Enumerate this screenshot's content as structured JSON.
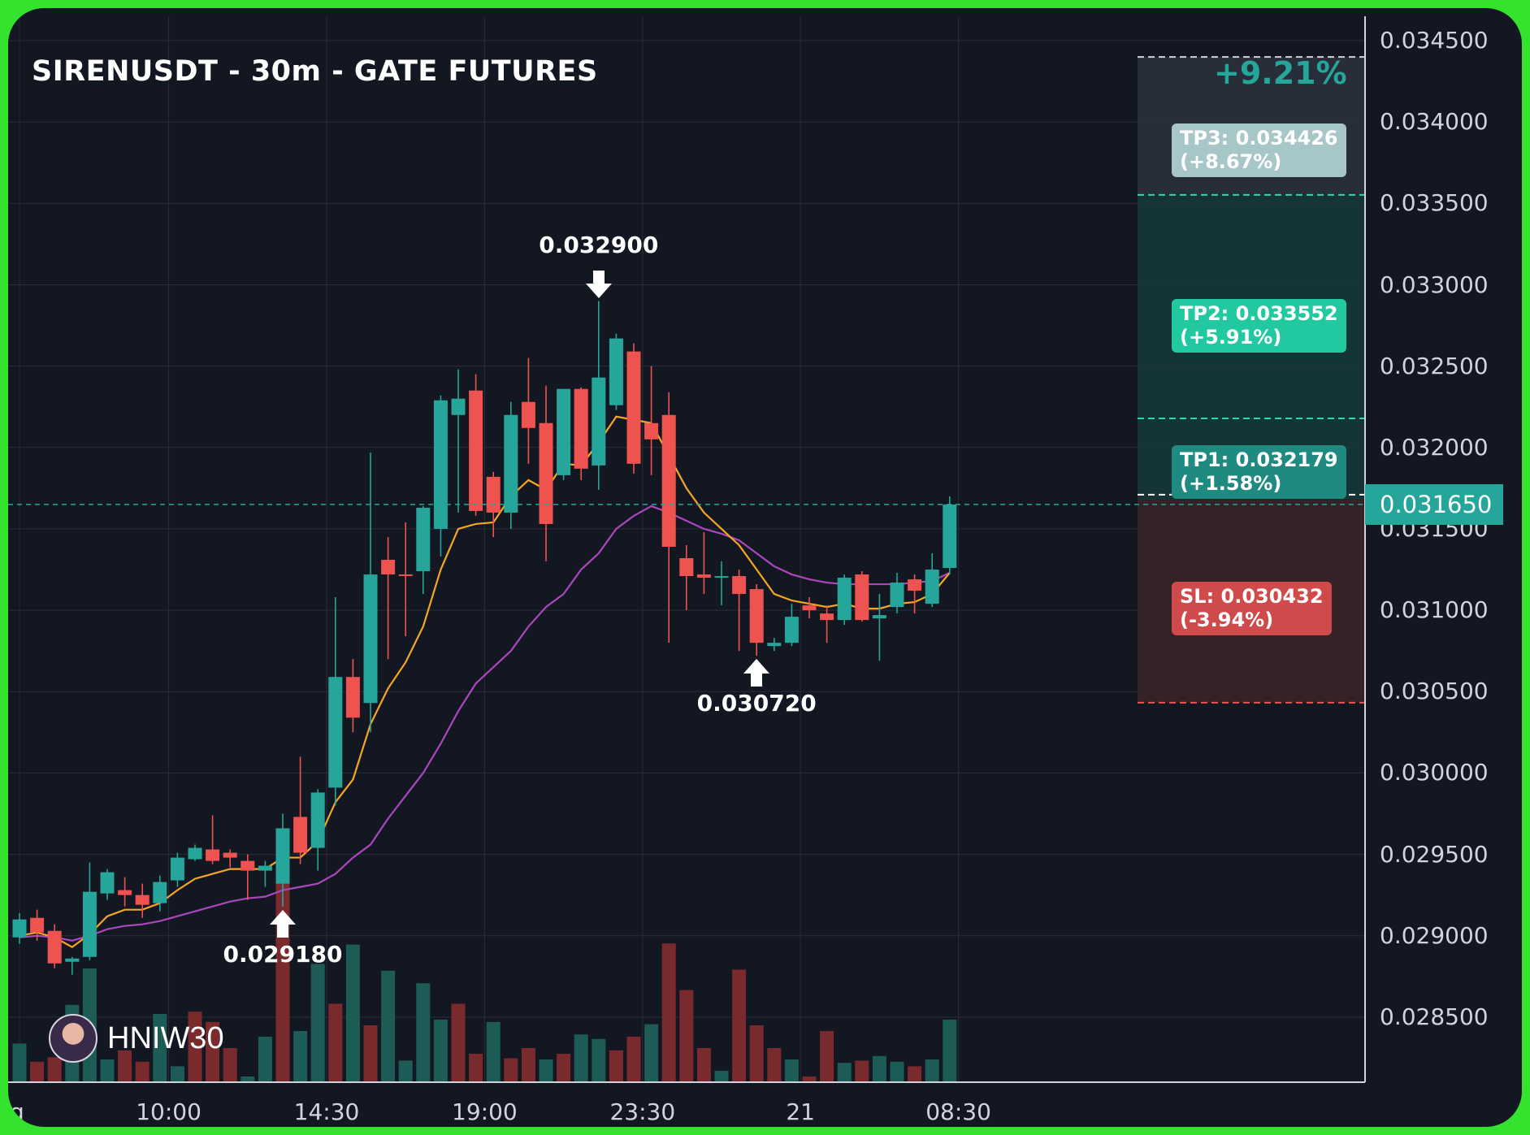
{
  "header": {
    "title": "SIRENUSDT - 30m - GATE FUTURES",
    "change_label": "+9.21%"
  },
  "levels": {
    "tp3": {
      "line1": "TP3: 0.034426",
      "line2": "(+8.67%)",
      "price": 0.034426
    },
    "tp2": {
      "line1": "TP2: 0.033552",
      "line2": "(+5.91%)",
      "price": 0.033552
    },
    "tp1": {
      "line1": "TP1: 0.032179",
      "line2": "(+1.58%)",
      "price": 0.032179
    },
    "entry": {
      "price": 0.03168
    },
    "sl": {
      "line1": "SL: 0.030432",
      "line2": "(-3.94%)",
      "price": 0.030432
    },
    "top_target": {
      "price": 0.0344
    }
  },
  "current_price": {
    "label": "0.031650",
    "value": 0.03165
  },
  "annotations": [
    {
      "label": "0.032900",
      "direction": "down",
      "candle": 33
    },
    {
      "label": "0.030720",
      "direction": "up",
      "candle": 42
    },
    {
      "label": "0.029180",
      "direction": "up",
      "candle": 15
    }
  ],
  "watermark": {
    "name": "HNIW30"
  },
  "colors": {
    "up": "#26a69a",
    "down": "#ef5350",
    "ema_fast": "#f5a623",
    "ema_slow": "#ab47bc",
    "background": "#131722",
    "frame": "#33e32e"
  },
  "chart_data": {
    "type": "candlestick",
    "symbol": "SIRENUSDT",
    "timeframe": "30m",
    "exchange": "GATE FUTURES",
    "ylim": [
      0.0281,
      0.03465
    ],
    "y_ticks": [
      "0.034500",
      "0.034000",
      "0.033500",
      "0.033000",
      "0.032500",
      "0.032000",
      "0.031500",
      "0.031000",
      "0.030500",
      "0.030000",
      "0.029500",
      "0.029000",
      "0.028500"
    ],
    "x_ticks": [
      {
        "label": "g",
        "index": 0
      },
      {
        "label": "10:00",
        "index": 8.5
      },
      {
        "label": "14:30",
        "index": 17.5
      },
      {
        "label": "19:00",
        "index": 26.5
      },
      {
        "label": "23:30",
        "index": 35.5
      },
      {
        "label": "21",
        "index": 44.5
      },
      {
        "label": "08:30",
        "index": 53.5
      }
    ],
    "grid": true,
    "candles": [
      {
        "o": 0.02899,
        "h": 0.02914,
        "l": 0.02895,
        "c": 0.0291
      },
      {
        "o": 0.02911,
        "h": 0.02916,
        "l": 0.02897,
        "c": 0.02902
      },
      {
        "o": 0.02903,
        "h": 0.02907,
        "l": 0.0288,
        "c": 0.02883
      },
      {
        "o": 0.02884,
        "h": 0.02887,
        "l": 0.02876,
        "c": 0.02886
      },
      {
        "o": 0.02887,
        "h": 0.02945,
        "l": 0.02885,
        "c": 0.02927
      },
      {
        "o": 0.02926,
        "h": 0.02941,
        "l": 0.02922,
        "c": 0.02939
      },
      {
        "o": 0.02928,
        "h": 0.02936,
        "l": 0.02918,
        "c": 0.02925
      },
      {
        "o": 0.02925,
        "h": 0.02932,
        "l": 0.02911,
        "c": 0.02919
      },
      {
        "o": 0.0292,
        "h": 0.02937,
        "l": 0.02915,
        "c": 0.02933
      },
      {
        "o": 0.02934,
        "h": 0.02951,
        "l": 0.0293,
        "c": 0.02948
      },
      {
        "o": 0.02947,
        "h": 0.02956,
        "l": 0.02946,
        "c": 0.02954
      },
      {
        "o": 0.02953,
        "h": 0.02974,
        "l": 0.02944,
        "c": 0.02946
      },
      {
        "o": 0.02951,
        "h": 0.02953,
        "l": 0.02942,
        "c": 0.02948
      },
      {
        "o": 0.02946,
        "h": 0.0295,
        "l": 0.02922,
        "c": 0.0294
      },
      {
        "o": 0.0294,
        "h": 0.02946,
        "l": 0.0293,
        "c": 0.02943
      },
      {
        "o": 0.02932,
        "h": 0.02975,
        "l": 0.02918,
        "c": 0.02966
      },
      {
        "o": 0.02973,
        "h": 0.0301,
        "l": 0.02944,
        "c": 0.02951
      },
      {
        "o": 0.02954,
        "h": 0.0299,
        "l": 0.0294,
        "c": 0.02988
      },
      {
        "o": 0.02991,
        "h": 0.03108,
        "l": 0.0298,
        "c": 0.03059
      },
      {
        "o": 0.03059,
        "h": 0.0307,
        "l": 0.03025,
        "c": 0.03034
      },
      {
        "o": 0.03043,
        "h": 0.03197,
        "l": 0.03025,
        "c": 0.03122
      },
      {
        "o": 0.03131,
        "h": 0.03145,
        "l": 0.0307,
        "c": 0.03122
      },
      {
        "o": 0.03122,
        "h": 0.03154,
        "l": 0.03084,
        "c": 0.03121
      },
      {
        "o": 0.03124,
        "h": 0.03164,
        "l": 0.0311,
        "c": 0.03163
      },
      {
        "o": 0.0315,
        "h": 0.03232,
        "l": 0.03133,
        "c": 0.03229
      },
      {
        "o": 0.0322,
        "h": 0.03248,
        "l": 0.0316,
        "c": 0.0323
      },
      {
        "o": 0.03235,
        "h": 0.03245,
        "l": 0.03158,
        "c": 0.03161
      },
      {
        "o": 0.03182,
        "h": 0.03185,
        "l": 0.03145,
        "c": 0.0316
      },
      {
        "o": 0.0316,
        "h": 0.03228,
        "l": 0.0315,
        "c": 0.0322
      },
      {
        "o": 0.03228,
        "h": 0.03255,
        "l": 0.0319,
        "c": 0.03212
      },
      {
        "o": 0.03215,
        "h": 0.03238,
        "l": 0.0313,
        "c": 0.03153
      },
      {
        "o": 0.03183,
        "h": 0.03235,
        "l": 0.0318,
        "c": 0.03236
      },
      {
        "o": 0.03236,
        "h": 0.03237,
        "l": 0.0318,
        "c": 0.03187
      },
      {
        "o": 0.03189,
        "h": 0.0329,
        "l": 0.03174,
        "c": 0.03243
      },
      {
        "o": 0.03226,
        "h": 0.0327,
        "l": 0.03223,
        "c": 0.03267
      },
      {
        "o": 0.03259,
        "h": 0.03264,
        "l": 0.03184,
        "c": 0.0319
      },
      {
        "o": 0.03215,
        "h": 0.0325,
        "l": 0.03183,
        "c": 0.03205
      },
      {
        "o": 0.0322,
        "h": 0.03234,
        "l": 0.0308,
        "c": 0.03139
      },
      {
        "o": 0.03132,
        "h": 0.0314,
        "l": 0.031,
        "c": 0.03121
      },
      {
        "o": 0.03122,
        "h": 0.03148,
        "l": 0.0311,
        "c": 0.0312
      },
      {
        "o": 0.0312,
        "h": 0.0313,
        "l": 0.03103,
        "c": 0.03121
      },
      {
        "o": 0.03121,
        "h": 0.03125,
        "l": 0.03075,
        "c": 0.0311
      },
      {
        "o": 0.03113,
        "h": 0.03116,
        "l": 0.03072,
        "c": 0.0308
      },
      {
        "o": 0.03078,
        "h": 0.03083,
        "l": 0.03075,
        "c": 0.0308
      },
      {
        "o": 0.0308,
        "h": 0.03104,
        "l": 0.03078,
        "c": 0.03096
      },
      {
        "o": 0.03103,
        "h": 0.03108,
        "l": 0.03095,
        "c": 0.031
      },
      {
        "o": 0.03098,
        "h": 0.03103,
        "l": 0.0308,
        "c": 0.03094
      },
      {
        "o": 0.03094,
        "h": 0.03122,
        "l": 0.03091,
        "c": 0.0312
      },
      {
        "o": 0.03122,
        "h": 0.03124,
        "l": 0.03093,
        "c": 0.03094
      },
      {
        "o": 0.03095,
        "h": 0.0311,
        "l": 0.03069,
        "c": 0.03097
      },
      {
        "o": 0.03102,
        "h": 0.03123,
        "l": 0.03098,
        "c": 0.03117
      },
      {
        "o": 0.03119,
        "h": 0.03122,
        "l": 0.03098,
        "c": 0.03112
      },
      {
        "o": 0.03104,
        "h": 0.03135,
        "l": 0.03102,
        "c": 0.03125
      },
      {
        "o": 0.03126,
        "h": 0.0317,
        "l": 0.03122,
        "c": 0.03165
      }
    ],
    "volume": [
      {
        "v": 0.34,
        "up": true
      },
      {
        "v": 0.18,
        "up": false
      },
      {
        "v": 0.22,
        "up": false
      },
      {
        "v": 0.68,
        "up": true
      },
      {
        "v": 1.0,
        "up": true
      },
      {
        "v": 0.2,
        "up": true
      },
      {
        "v": 0.28,
        "up": false
      },
      {
        "v": 0.18,
        "up": false
      },
      {
        "v": 0.6,
        "up": true
      },
      {
        "v": 0.14,
        "up": true
      },
      {
        "v": 0.62,
        "up": false
      },
      {
        "v": 0.53,
        "up": false
      },
      {
        "v": 0.3,
        "up": false
      },
      {
        "v": 0.05,
        "up": true
      },
      {
        "v": 0.4,
        "up": true
      },
      {
        "v": 1.81,
        "up": false
      },
      {
        "v": 0.45,
        "up": true
      },
      {
        "v": 1.04,
        "up": true
      },
      {
        "v": 0.69,
        "up": false
      },
      {
        "v": 1.21,
        "up": true
      },
      {
        "v": 0.5,
        "up": false
      },
      {
        "v": 0.98,
        "up": true
      },
      {
        "v": 0.19,
        "up": true
      },
      {
        "v": 0.87,
        "up": true
      },
      {
        "v": 0.55,
        "up": true
      },
      {
        "v": 0.69,
        "up": false
      },
      {
        "v": 0.25,
        "up": false
      },
      {
        "v": 0.53,
        "up": true
      },
      {
        "v": 0.21,
        "up": false
      },
      {
        "v": 0.3,
        "up": false
      },
      {
        "v": 0.2,
        "up": true
      },
      {
        "v": 0.25,
        "up": false
      },
      {
        "v": 0.42,
        "up": true
      },
      {
        "v": 0.38,
        "up": true
      },
      {
        "v": 0.28,
        "up": false
      },
      {
        "v": 0.4,
        "up": false
      },
      {
        "v": 0.51,
        "up": true
      },
      {
        "v": 1.22,
        "up": false
      },
      {
        "v": 0.81,
        "up": false
      },
      {
        "v": 0.3,
        "up": false
      },
      {
        "v": 0.1,
        "up": true
      },
      {
        "v": 0.99,
        "up": false
      },
      {
        "v": 0.5,
        "up": false
      },
      {
        "v": 0.3,
        "up": false
      },
      {
        "v": 0.2,
        "up": true
      },
      {
        "v": 0.05,
        "up": false
      },
      {
        "v": 0.45,
        "up": false
      },
      {
        "v": 0.17,
        "up": true
      },
      {
        "v": 0.19,
        "up": false
      },
      {
        "v": 0.23,
        "up": true
      },
      {
        "v": 0.18,
        "up": true
      },
      {
        "v": 0.14,
        "up": false
      },
      {
        "v": 0.2,
        "up": true
      },
      {
        "v": 0.55,
        "up": true
      }
    ],
    "ema_fast": [
      0.029,
      0.02902,
      0.02899,
      0.02893,
      0.02901,
      0.02912,
      0.02916,
      0.02916,
      0.0292,
      0.02928,
      0.02935,
      0.02938,
      0.02941,
      0.02941,
      0.02941,
      0.02948,
      0.02948,
      0.02958,
      0.02982,
      0.02996,
      0.0303,
      0.03052,
      0.03068,
      0.0309,
      0.03125,
      0.0315,
      0.03153,
      0.03154,
      0.0317,
      0.0318,
      0.03174,
      0.0319,
      0.03189,
      0.03203,
      0.03219,
      0.03217,
      0.03215,
      0.03195,
      0.03175,
      0.0316,
      0.0315,
      0.0314,
      0.03125,
      0.0311,
      0.03106,
      0.03104,
      0.03102,
      0.03104,
      0.03101,
      0.03101,
      0.03104,
      0.03105,
      0.0311,
      0.03123
    ],
    "ema_slow": [
      0.02899,
      0.029,
      0.02899,
      0.02897,
      0.029,
      0.02904,
      0.02906,
      0.02907,
      0.02909,
      0.02912,
      0.02915,
      0.02918,
      0.02921,
      0.02923,
      0.02924,
      0.02928,
      0.0293,
      0.02932,
      0.02938,
      0.02948,
      0.02956,
      0.02972,
      0.02986,
      0.03,
      0.03018,
      0.03038,
      0.03055,
      0.03065,
      0.03075,
      0.0309,
      0.03102,
      0.0311,
      0.03125,
      0.03135,
      0.0315,
      0.03158,
      0.03164,
      0.0316,
      0.03155,
      0.0315,
      0.03147,
      0.03143,
      0.03135,
      0.03127,
      0.03122,
      0.03119,
      0.03117,
      0.03116,
      0.03116,
      0.03116,
      0.03116,
      0.03117,
      0.03118,
      0.03123
    ]
  }
}
